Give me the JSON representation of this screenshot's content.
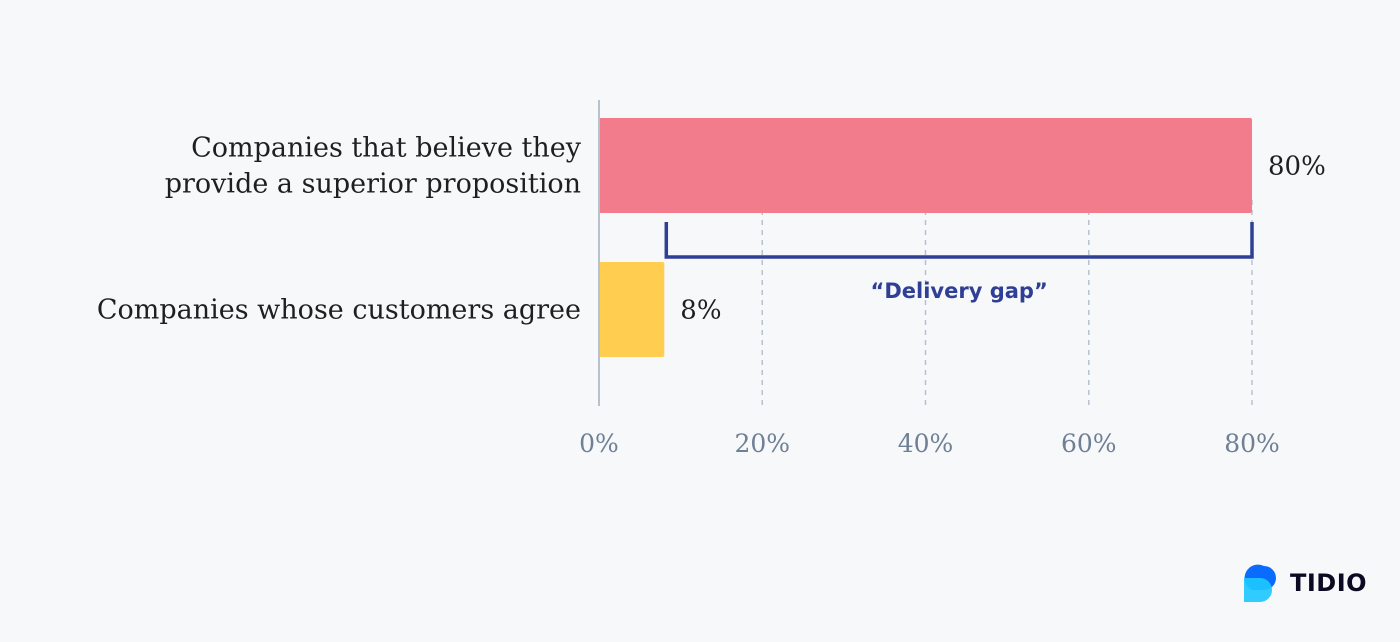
{
  "chart_data": {
    "type": "bar",
    "orientation": "horizontal",
    "categories": [
      [
        "Companies that believe they",
        "provide a superior proposition"
      ],
      [
        "Companies whose customers agree"
      ]
    ],
    "values": [
      80,
      8
    ],
    "value_labels": [
      "80%",
      "8%"
    ],
    "bar_colors": [
      "#f27b8c",
      "#ffcd4f"
    ],
    "xlim": [
      0,
      80
    ],
    "x_ticks": [
      0,
      20,
      40,
      60,
      80
    ],
    "x_tick_labels": [
      "0%",
      "20%",
      "40%",
      "60%",
      "80%"
    ],
    "grid": "vertical dashed",
    "annotation": {
      "label": "“Delivery gap”",
      "from": 8,
      "to": 80,
      "color": "#2f3f96"
    }
  },
  "brand": {
    "name": "TIDIO",
    "icon": "tidio-logo-icon",
    "colors": [
      "#0a6cff",
      "#1ec8ff"
    ]
  }
}
